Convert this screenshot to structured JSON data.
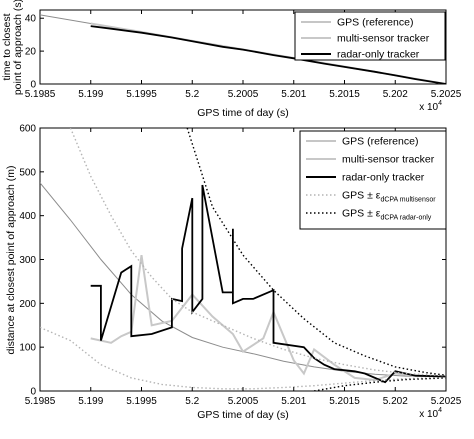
{
  "chart_data": [
    {
      "type": "line",
      "xlabel": "GPS time of day (s)",
      "ylabel": "time to closest point of approach (s)",
      "x_multiplier_label": "x 10",
      "x_multiplier_exp": "4",
      "xlim": [
        5.1985,
        5.2025
      ],
      "ylim": [
        0,
        45
      ],
      "xticks": [
        5.1985,
        5.199,
        5.1995,
        5.2,
        5.2005,
        5.201,
        5.2015,
        5.202,
        5.2025
      ],
      "xtick_labels": [
        "5.1985",
        "5.199",
        "5.1995",
        "5.2",
        "5.2005",
        "5.201",
        "5.2015",
        "5.202",
        "5.2025"
      ],
      "yticks": [
        0,
        20,
        40
      ],
      "ytick_labels": [
        "0",
        "20",
        "40"
      ],
      "legend": "top-right",
      "series": [
        {
          "name": "GPS (reference)",
          "color": "#8c8c8c",
          "x": [
            5.1985,
            5.1995,
            5.2005,
            5.2015,
            5.2025
          ],
          "y": [
            42,
            31.5,
            21,
            10.5,
            0
          ]
        },
        {
          "name": "multi-sensor tracker",
          "color": "#c8c8c8",
          "x": [
            5.199,
            5.1995,
            5.2,
            5.2005,
            5.201,
            5.2015,
            5.202,
            5.2025
          ],
          "y": [
            36.8,
            31.6,
            26.2,
            21,
            15.8,
            10.6,
            5.3,
            0
          ]
        },
        {
          "name": "radar-only tracker",
          "color": "#000000",
          "x": [
            5.199,
            5.1992,
            5.1995,
            5.1998,
            5.2,
            5.2003,
            5.2005,
            5.2008,
            5.201,
            5.2013,
            5.2015,
            5.2018,
            5.202,
            5.2022,
            5.2025
          ],
          "y": [
            35.2,
            33.6,
            31.2,
            28.3,
            26.0,
            22.6,
            20.9,
            17.6,
            15.6,
            12.4,
            10.4,
            7.4,
            5.2,
            3.0,
            0
          ]
        }
      ]
    },
    {
      "type": "line",
      "xlabel": "GPS time of day (s)",
      "ylabel": "distance at closest point of approach (m)",
      "x_multiplier_label": "x 10",
      "x_multiplier_exp": "4",
      "xlim": [
        5.1985,
        5.2025
      ],
      "ylim": [
        0,
        600
      ],
      "xticks": [
        5.1985,
        5.199,
        5.1995,
        5.2,
        5.2005,
        5.201,
        5.2015,
        5.202,
        5.2025
      ],
      "xtick_labels": [
        "5.1985",
        "5.199",
        "5.1995",
        "5.2",
        "5.2005",
        "5.201",
        "5.2015",
        "5.202",
        "5.2025"
      ],
      "yticks": [
        0,
        100,
        200,
        300,
        400,
        500,
        600
      ],
      "ytick_labels": [
        "0",
        "100",
        "200",
        "300",
        "400",
        "500",
        "600"
      ],
      "legend": "top-right",
      "series": [
        {
          "name": "GPS (reference)",
          "color": "#8c8c8c",
          "style": "solid",
          "x": [
            5.1985,
            5.1988,
            5.1991,
            5.1994,
            5.1997,
            5.2,
            5.2003,
            5.2006,
            5.2009,
            5.2012,
            5.2015,
            5.2018,
            5.2021,
            5.2025
          ],
          "y": [
            475,
            390,
            300,
            220,
            160,
            122,
            100,
            85,
            68,
            55,
            45,
            38,
            34,
            33
          ]
        },
        {
          "name": "multi-sensor tracker",
          "color": "#c8c8c8",
          "style": "solid",
          "x": [
            5.199,
            5.1992,
            5.1993,
            5.1994,
            5.1995,
            5.1996,
            5.1998,
            5.2,
            5.2002,
            5.2004,
            5.2005,
            5.2007,
            5.2008,
            5.201,
            5.2011,
            5.2012,
            5.2014,
            5.2016,
            5.2018,
            5.202,
            5.2022,
            5.2025
          ],
          "y": [
            120,
            110,
            125,
            135,
            310,
            150,
            160,
            220,
            170,
            130,
            90,
            120,
            180,
            70,
            40,
            95,
            60,
            30,
            25,
            40,
            35,
            33
          ]
        },
        {
          "name": "radar-only tracker",
          "color": "#000000",
          "style": "solid",
          "x": [
            5.199,
            5.1991,
            5.1991,
            5.1993,
            5.1994,
            5.1994,
            5.1996,
            5.1998,
            5.1998,
            5.1999,
            5.1999,
            5.2,
            5.2,
            5.2001,
            5.2001,
            5.2003,
            5.2004,
            5.2004,
            5.2004,
            5.2005,
            5.2006,
            5.2008,
            5.2008,
            5.2011,
            5.2012,
            5.2013,
            5.2014,
            5.2016,
            5.2017,
            5.2019,
            5.202,
            5.2022,
            5.2025
          ],
          "y": [
            240,
            240,
            115,
            270,
            285,
            125,
            130,
            145,
            210,
            205,
            325,
            440,
            180,
            210,
            470,
            225,
            225,
            370,
            200,
            210,
            210,
            230,
            110,
            100,
            75,
            60,
            50,
            45,
            40,
            20,
            45,
            35,
            33
          ]
        },
        {
          "name": "GPS ± ε dCPA multisensor",
          "color": "#b4b4b4",
          "style": "dotted",
          "x": [
            5.1988,
            5.199,
            5.1992,
            5.1994,
            5.1996,
            5.1998,
            5.2,
            5.2003,
            5.2006,
            5.2009,
            5.2012,
            5.2015,
            5.2018,
            5.2021,
            5.2025
          ],
          "y": [
            600,
            490,
            400,
            320,
            260,
            210,
            180,
            150,
            120,
            95,
            75,
            60,
            48,
            40,
            35
          ]
        },
        {
          "name": "GPS ± ε dCPA multisensor",
          "color": "#b4b4b4",
          "style": "dotted",
          "x": [
            5.1985,
            5.1988,
            5.1991,
            5.1994,
            5.1997,
            5.2,
            5.2003,
            5.2006,
            5.2009,
            5.2012,
            5.2015,
            5.2018,
            5.2021,
            5.2025
          ],
          "y": [
            145,
            115,
            60,
            30,
            15,
            8,
            5,
            5,
            8,
            12,
            18,
            24,
            28,
            31
          ]
        },
        {
          "name": "GPS ± ε dCPA radar-only",
          "color": "#000000",
          "style": "dotted",
          "x": [
            5.19995,
            5.2002,
            5.2005,
            5.2008,
            5.2011,
            5.2014,
            5.2017,
            5.202,
            5.2023,
            5.2025
          ],
          "y": [
            600,
            420,
            310,
            230,
            165,
            110,
            80,
            55,
            42,
            36
          ]
        },
        {
          "name": "GPS ± ε dCPA radar-only",
          "color": "#000000",
          "style": "dotted",
          "x": [
            5.2012,
            5.2015,
            5.2018,
            5.2021,
            5.2025
          ],
          "y": [
            0,
            12,
            20,
            26,
            30
          ]
        }
      ],
      "legend_entries": [
        {
          "label": "GPS (reference)",
          "color": "#8c8c8c",
          "style": "solid"
        },
        {
          "label": "multi-sensor tracker",
          "color": "#c8c8c8",
          "style": "solid"
        },
        {
          "label": "radar-only tracker",
          "color": "#000000",
          "style": "solid"
        },
        {
          "label": "GPS ± ε",
          "sub": "dCPA multisensor",
          "color": "#b4b4b4",
          "style": "dotted"
        },
        {
          "label": "GPS ± ε",
          "sub": "dCPA radar-only",
          "color": "#000000",
          "style": "dotted"
        }
      ]
    }
  ]
}
